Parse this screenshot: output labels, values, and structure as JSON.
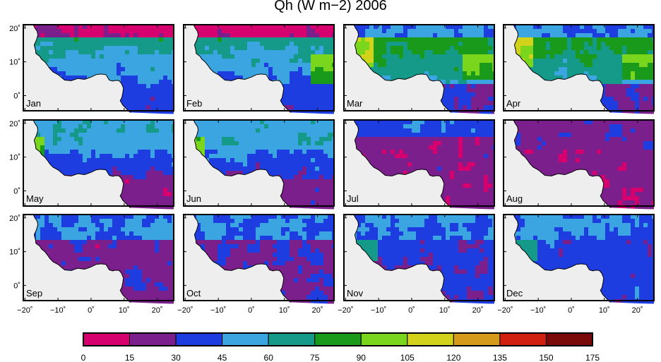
{
  "title": "Qh (W m−2) 2006",
  "panels": [
    "Jan",
    "Feb",
    "Mar",
    "Apr",
    "May",
    "Jun",
    "Jul",
    "Aug",
    "Sep",
    "Oct",
    "Nov",
    "Dec"
  ],
  "axes": {
    "lat_labels": [
      "20˚",
      "10˚",
      "0˚"
    ],
    "lon_labels": [
      "−20˚",
      "−10˚",
      "0˚",
      "10˚",
      "20˚"
    ],
    "lon_range": [
      -20,
      25
    ],
    "lat_range": [
      -5,
      21
    ]
  },
  "colorbar": {
    "ticks": [
      "0",
      "15",
      "30",
      "45",
      "60",
      "75",
      "90",
      "105",
      "120",
      "135",
      "150",
      "175"
    ],
    "colors": [
      "#d6006f",
      "#7a1f8c",
      "#1e3de0",
      "#3aa5e0",
      "#159a8a",
      "#1a9a1a",
      "#7ad61c",
      "#d2d21a",
      "#d69a1a",
      "#d22010",
      "#7a0a0a"
    ]
  },
  "background_color": "#eeeeee"
}
